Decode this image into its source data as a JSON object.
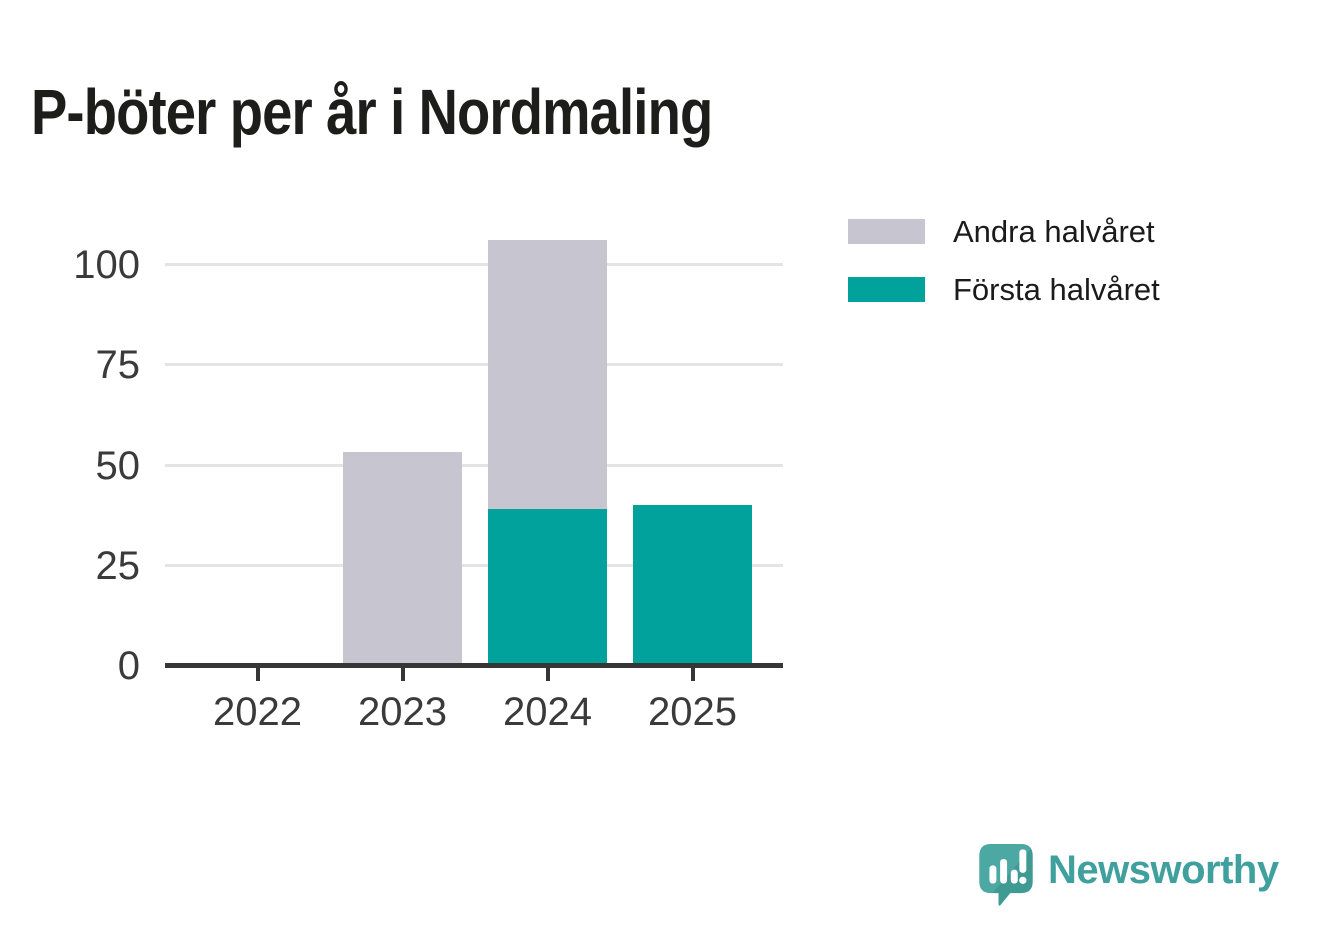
{
  "chart_data": {
    "type": "bar",
    "stacked": true,
    "title": "P-böter per år i Nordmaling",
    "categories": [
      "2022",
      "2023",
      "2024",
      "2025"
    ],
    "series": [
      {
        "name": "Första halvåret",
        "color": "#00A29B",
        "values": [
          0,
          0,
          39,
          40
        ]
      },
      {
        "name": "Andra halvåret",
        "color": "#C7C5D0",
        "values": [
          0,
          53,
          67,
          0
        ]
      }
    ],
    "totals": [
      0,
      53,
      106,
      40
    ],
    "xlabel": "",
    "ylabel": "",
    "yticks": [
      0,
      25,
      50,
      75,
      100
    ],
    "ylim": [
      0,
      108
    ],
    "grid": true,
    "legend_position": "upper-right-outside"
  },
  "legend": {
    "items": [
      {
        "label": "Andra halvåret",
        "color": "#C7C5D0"
      },
      {
        "label": "Första halvåret",
        "color": "#00A29B"
      }
    ]
  },
  "branding": {
    "logo_text": "Newsworthy",
    "logo_color": "#3FA09E"
  },
  "colors": {
    "background": "#FFFFFF",
    "title_text": "#1D1D1B",
    "tick_label": "#3A3A3A",
    "axis_line": "#363636",
    "gridline": "#E4E4E6"
  }
}
